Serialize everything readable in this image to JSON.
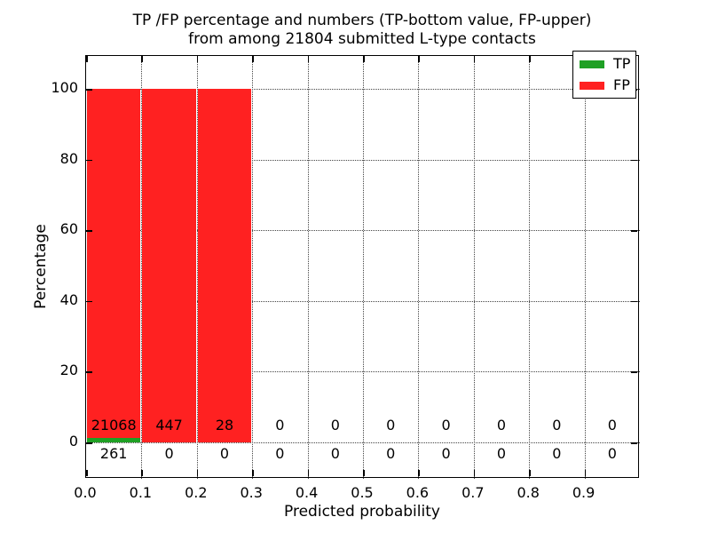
{
  "title": {
    "line1": "TP /FP percentage and numbers (TP-bottom value, FP-upper)",
    "line2": "from among 21804 submitted L-type contacts"
  },
  "chart_data": {
    "type": "bar",
    "stacked": true,
    "title": "TP /FP percentage and numbers (TP-bottom value, FP-upper) from among 21804 submitted L-type contacts",
    "xlabel": "Predicted probability",
    "ylabel": "Percentage",
    "total_submitted": 21804,
    "xlim": [
      0.0,
      1.0
    ],
    "ylim": [
      -10.3,
      109.3
    ],
    "y_ticks": [
      0,
      20,
      40,
      60,
      80,
      100
    ],
    "y_tick_labels": [
      "0",
      "20",
      "40",
      "60",
      "80",
      "100"
    ],
    "bin_width": 0.1,
    "bin_starts": [
      0.0,
      0.1,
      0.2,
      0.3,
      0.4,
      0.5,
      0.6,
      0.7,
      0.8,
      0.9
    ],
    "x_tick_values": [
      0.0,
      0.1,
      0.2,
      0.3,
      0.4,
      0.5,
      0.6,
      0.7,
      0.8,
      0.9
    ],
    "x_tick_labels": [
      "0.0",
      "0.1",
      "0.2",
      "0.3",
      "0.4",
      "0.5",
      "0.6",
      "0.7",
      "0.8",
      "0.9"
    ],
    "grid": "dotted, both axes",
    "series": [
      {
        "name": "TP",
        "color": "#1fa024",
        "counts": [
          261,
          0,
          0,
          0,
          0,
          0,
          0,
          0,
          0,
          0
        ],
        "percent": [
          1.22,
          0,
          0,
          0,
          0,
          0,
          0,
          0,
          0,
          0
        ]
      },
      {
        "name": "FP",
        "color": "#ff2121",
        "counts": [
          21068,
          447,
          28,
          0,
          0,
          0,
          0,
          0,
          0,
          0
        ],
        "percent": [
          98.78,
          100,
          100,
          0,
          0,
          0,
          0,
          0,
          0,
          0
        ]
      }
    ],
    "legend": {
      "position": "upper right",
      "entries": [
        {
          "label": "TP",
          "color": "#1fa024"
        },
        {
          "label": "FP",
          "color": "#ff2121"
        }
      ]
    }
  }
}
